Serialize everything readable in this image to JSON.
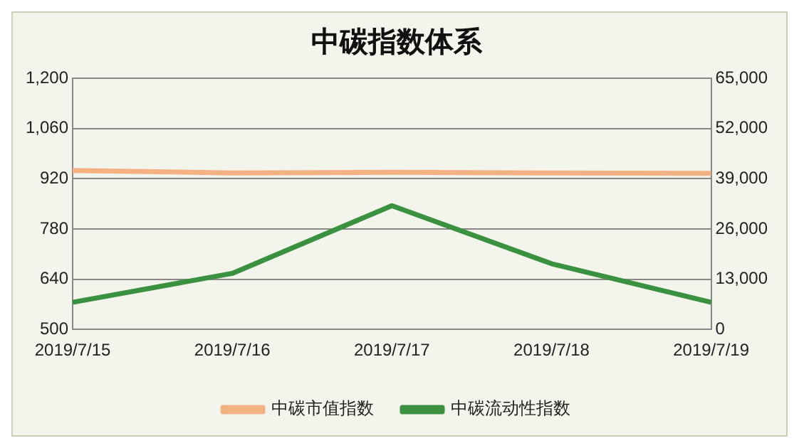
{
  "chart_data": {
    "type": "line",
    "title": "中碳指数体系",
    "categories": [
      "2019/7/15",
      "2019/7/16",
      "2019/7/17",
      "2019/7/18",
      "2019/7/19"
    ],
    "series": [
      {
        "name": "中碳市值指数",
        "color": "#f4b183",
        "values": [
          943,
          936,
          938,
          936,
          935
        ]
      },
      {
        "name": "中碳流动性指数",
        "color": "#3a913f",
        "axis": "y2",
        "values": [
          7000,
          14500,
          32000,
          17000,
          7000
        ]
      }
    ],
    "ylim": [
      500,
      1200
    ],
    "yticks": [
      {
        "value": 500,
        "label": "500"
      },
      {
        "value": 640,
        "label": "640"
      },
      {
        "value": 780,
        "label": "780"
      },
      {
        "value": 920,
        "label": "920"
      },
      {
        "value": 1060,
        "label": "1,060"
      },
      {
        "value": 1200,
        "label": "1,200"
      }
    ],
    "y2lim": [
      0,
      65000
    ],
    "y2ticks": [
      {
        "value": 0,
        "label": "0"
      },
      {
        "value": 13000,
        "label": "13,000"
      },
      {
        "value": 26000,
        "label": "26,000"
      },
      {
        "value": 39000,
        "label": "39,000"
      },
      {
        "value": 52000,
        "label": "52,000"
      },
      {
        "value": 65000,
        "label": "65,000"
      }
    ],
    "grid": "y",
    "legend": "bottom",
    "marker": "none",
    "line_style": "solid"
  }
}
